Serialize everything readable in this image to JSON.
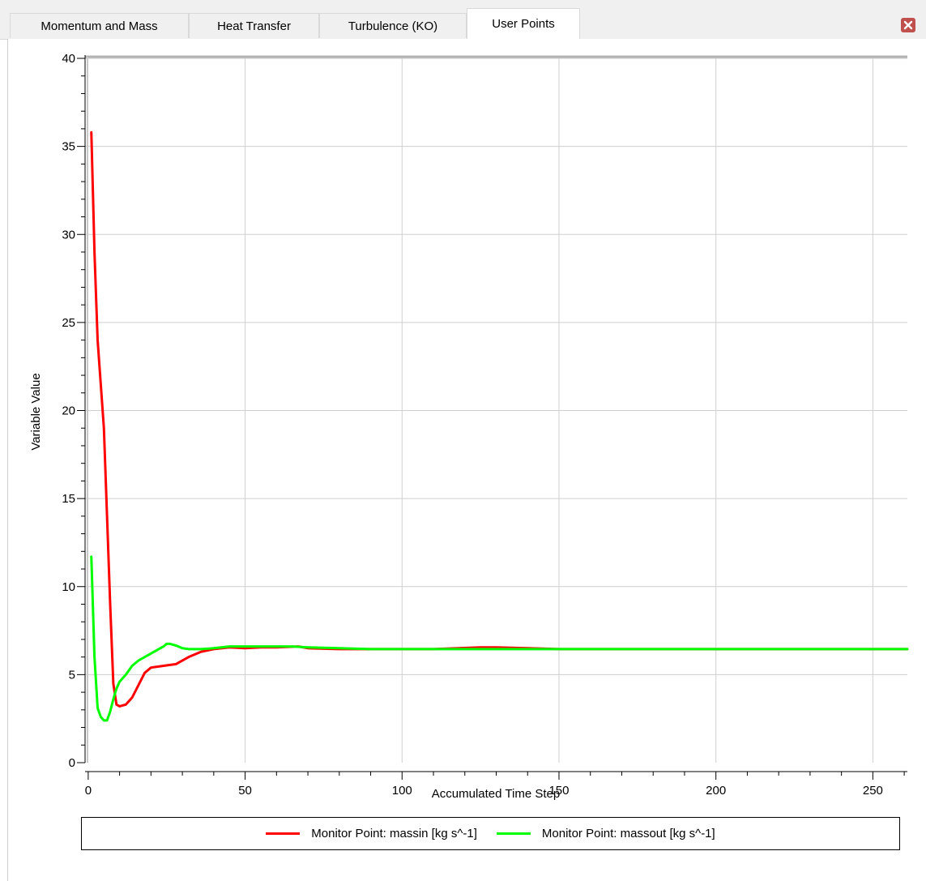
{
  "tabs": [
    {
      "label": "Momentum and Mass",
      "active": false
    },
    {
      "label": "Heat Transfer",
      "active": false
    },
    {
      "label": "Turbulence (KO)",
      "active": false
    },
    {
      "label": "User Points",
      "active": true
    }
  ],
  "close_icon": "close-icon",
  "chart_data": {
    "type": "line",
    "xlabel": "Accumulated Time Step",
    "ylabel": "Variable Value",
    "xlim": [
      -1,
      261
    ],
    "ylim": [
      0,
      40
    ],
    "xticks": [
      0,
      50,
      100,
      150,
      200,
      250
    ],
    "yticks": [
      0,
      5,
      10,
      15,
      20,
      25,
      30,
      35,
      40
    ],
    "grid": true,
    "legend_position": "bottom",
    "series": [
      {
        "name": "Monitor Point: massin [kg s^-1]",
        "color": "#ff0000",
        "points": [
          [
            1,
            35.8
          ],
          [
            2,
            29
          ],
          [
            3,
            24
          ],
          [
            4,
            21.5
          ],
          [
            5,
            19
          ],
          [
            6,
            14
          ],
          [
            7,
            9
          ],
          [
            8,
            4.5
          ],
          [
            9,
            3.3
          ],
          [
            10,
            3.2
          ],
          [
            12,
            3.3
          ],
          [
            14,
            3.7
          ],
          [
            16,
            4.4
          ],
          [
            18,
            5.1
          ],
          [
            20,
            5.4
          ],
          [
            24,
            5.5
          ],
          [
            28,
            5.6
          ],
          [
            32,
            6.0
          ],
          [
            36,
            6.3
          ],
          [
            40,
            6.45
          ],
          [
            45,
            6.55
          ],
          [
            50,
            6.5
          ],
          [
            55,
            6.55
          ],
          [
            60,
            6.55
          ],
          [
            67,
            6.6
          ],
          [
            70,
            6.5
          ],
          [
            80,
            6.45
          ],
          [
            90,
            6.45
          ],
          [
            100,
            6.45
          ],
          [
            110,
            6.45
          ],
          [
            118,
            6.5
          ],
          [
            125,
            6.55
          ],
          [
            130,
            6.55
          ],
          [
            140,
            6.5
          ],
          [
            150,
            6.45
          ],
          [
            200,
            6.45
          ],
          [
            261,
            6.45
          ]
        ]
      },
      {
        "name": "Monitor Point: massout [kg s^-1]",
        "color": "#00ff00",
        "points": [
          [
            1,
            11.7
          ],
          [
            2,
            6
          ],
          [
            3,
            3.1
          ],
          [
            4,
            2.6
          ],
          [
            5,
            2.4
          ],
          [
            6,
            2.4
          ],
          [
            7,
            2.9
          ],
          [
            8,
            3.6
          ],
          [
            9,
            4.2
          ],
          [
            10,
            4.6
          ],
          [
            12,
            5.0
          ],
          [
            14,
            5.5
          ],
          [
            16,
            5.8
          ],
          [
            18,
            6.0
          ],
          [
            20,
            6.2
          ],
          [
            22,
            6.4
          ],
          [
            24,
            6.6
          ],
          [
            25,
            6.75
          ],
          [
            26,
            6.75
          ],
          [
            28,
            6.65
          ],
          [
            30,
            6.5
          ],
          [
            32,
            6.45
          ],
          [
            36,
            6.45
          ],
          [
            40,
            6.5
          ],
          [
            45,
            6.6
          ],
          [
            50,
            6.6
          ],
          [
            55,
            6.6
          ],
          [
            65,
            6.6
          ],
          [
            70,
            6.55
          ],
          [
            80,
            6.5
          ],
          [
            90,
            6.45
          ],
          [
            100,
            6.45
          ],
          [
            150,
            6.45
          ],
          [
            200,
            6.45
          ],
          [
            261,
            6.45
          ]
        ]
      }
    ]
  }
}
